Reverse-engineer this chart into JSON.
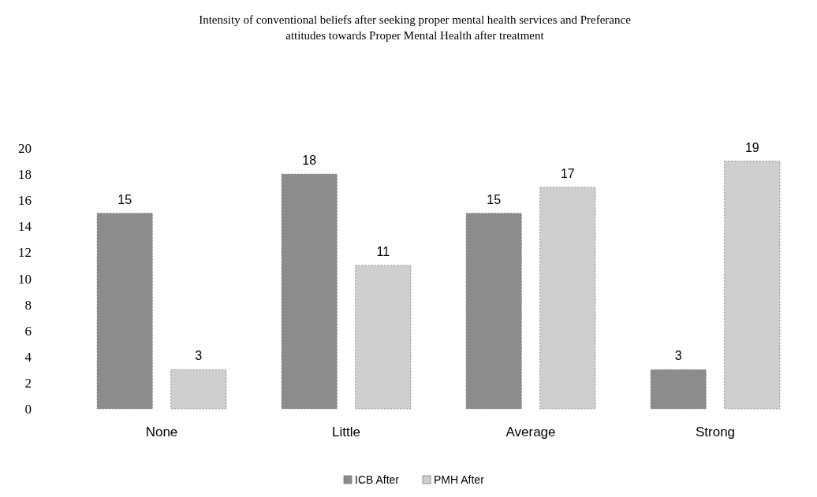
{
  "chart_data": {
    "type": "bar",
    "title": "Intensity of conventional beliefs after seeking proper mental health services and Preferance attitudes towards Proper Mental Health after treatment",
    "categories": [
      "None",
      "Little",
      "Average",
      "Strong"
    ],
    "series": [
      {
        "name": "ICB After",
        "color": "#8c8c8c",
        "values": [
          15,
          18,
          15,
          3
        ]
      },
      {
        "name": "PMH After",
        "color": "#cfcfcf",
        "values": [
          3,
          11,
          17,
          19
        ]
      }
    ],
    "ylim": [
      0,
      20
    ],
    "yticks": [
      0,
      2,
      4,
      6,
      8,
      10,
      12,
      14,
      16,
      18,
      20
    ],
    "grid": false,
    "legend": "bottom",
    "data_labels": true
  }
}
